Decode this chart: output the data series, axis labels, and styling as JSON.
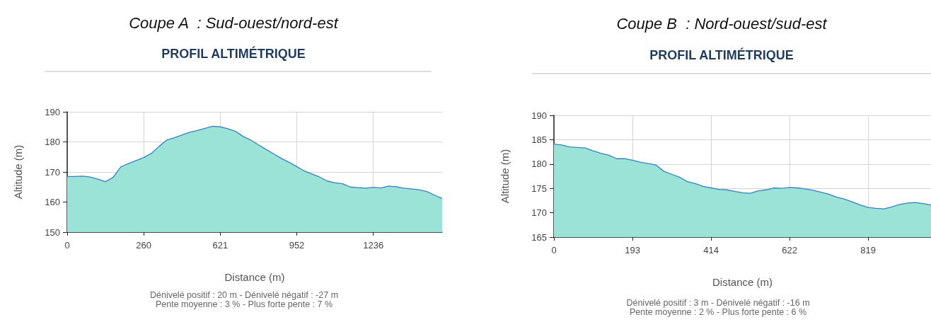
{
  "chart_data": [
    {
      "type": "area",
      "title": "Coupe A  : Sud-ouest/nord-est",
      "subtitle": "PROFIL ALTIMÉTRIQUE",
      "xlabel": "Distance (m)",
      "ylabel": "Altitude (m)",
      "categories": [
        "0",
        null,
        null,
        null,
        null,
        null,
        null,
        null,
        null,
        null,
        "260",
        null,
        null,
        null,
        null,
        null,
        null,
        null,
        null,
        null,
        "621",
        null,
        null,
        null,
        null,
        null,
        null,
        null,
        null,
        null,
        "952",
        null,
        null,
        null,
        null,
        null,
        null,
        null,
        null,
        null,
        "1236",
        null,
        null,
        null,
        null,
        null,
        null,
        null,
        null,
        null
      ],
      "series": [
        {
          "color": "#9ae3d6",
          "values": [
            168.5,
            168.5,
            168.6,
            168.3,
            167.6,
            166.8,
            168.2,
            171.7,
            172.8,
            173.8,
            174.8,
            176.2,
            178.5,
            180.6,
            181.4,
            182.3,
            183.2,
            183.8,
            184.5,
            185.2,
            185.0,
            184.4,
            183.5,
            181.8,
            180.6,
            179.0,
            177.5,
            176.0,
            174.5,
            173.2,
            171.8,
            170.3,
            169.3,
            168.3,
            167.0,
            166.4,
            166.1,
            165.0,
            164.8,
            164.6,
            164.9,
            164.7,
            165.3,
            165.1,
            164.6,
            164.4,
            164.1,
            163.5,
            162.3,
            161.2
          ]
        }
      ],
      "ylim": [
        150,
        190
      ],
      "yticks": [
        150,
        160,
        170,
        180,
        190
      ],
      "grid": true,
      "annotations": [
        "Dénivelé positif : 20 m - Dénivelé négatif : -27 m",
        "Pente moyenne : 3 % - Plus forte pente : 7 %"
      ]
    },
    {
      "type": "area",
      "title": "Coupe B  : Nord-ouest/sud-est",
      "subtitle": "PROFIL ALTIMÉTRIQUE",
      "xlabel": "Distance (m)",
      "ylabel": "Altitude (m)",
      "categories": [
        "0",
        null,
        null,
        null,
        null,
        null,
        null,
        null,
        null,
        null,
        "193",
        null,
        null,
        null,
        null,
        null,
        null,
        null,
        null,
        null,
        "414",
        null,
        null,
        null,
        null,
        null,
        null,
        null,
        null,
        null,
        "622",
        null,
        null,
        null,
        null,
        null,
        null,
        null,
        null,
        null,
        "819",
        null,
        null,
        null,
        null,
        null,
        null,
        null,
        null
      ],
      "series": [
        {
          "color": "#9ae3d6",
          "values": [
            184.1,
            183.9,
            183.5,
            183.4,
            183.3,
            182.7,
            182.2,
            181.8,
            181.1,
            181.1,
            180.8,
            180.4,
            180.1,
            179.8,
            178.5,
            177.9,
            177.3,
            176.4,
            176.0,
            175.4,
            175.1,
            174.8,
            174.7,
            174.4,
            174.1,
            174.0,
            174.5,
            174.7,
            175.1,
            175.0,
            175.2,
            175.1,
            174.9,
            174.6,
            174.2,
            173.8,
            173.2,
            172.8,
            172.2,
            171.6,
            171.1,
            170.9,
            170.8,
            171.2,
            171.7,
            172.0,
            172.1,
            171.9,
            171.6
          ]
        }
      ],
      "ylim": [
        165,
        190
      ],
      "yticks": [
        165,
        170,
        175,
        180,
        185,
        190
      ],
      "grid": true,
      "annotations": [
        "Dénivelé positif : 3 m - Dénivelé négatif : -16 m",
        "Pente moyenne : 2 % - Plus forte pente : 6 %"
      ]
    }
  ]
}
